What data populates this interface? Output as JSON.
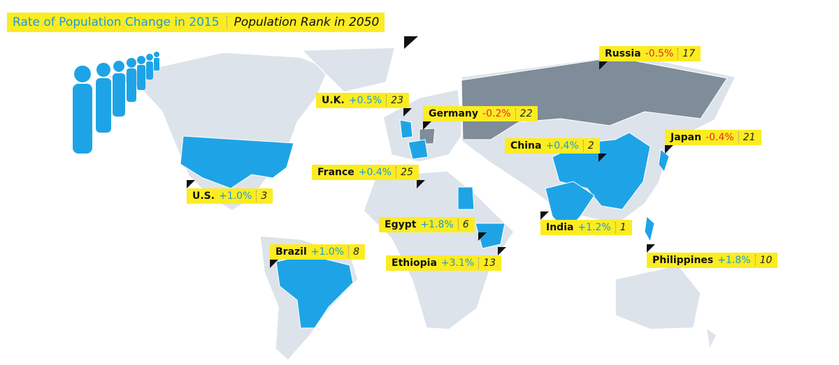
{
  "header": {
    "title": "Rate of  Population Change in 2015",
    "subtitle": "Population Rank in 2050"
  },
  "countries": [
    {
      "name": "Russia",
      "rate": "-0.5%",
      "rank": "17"
    },
    {
      "name": "U.K.",
      "rate": "+0.5%",
      "rank": "23"
    },
    {
      "name": "Germany",
      "rate": "-0.2%",
      "rank": "22"
    },
    {
      "name": "Japan",
      "rate": "-0.4%",
      "rank": "21"
    },
    {
      "name": "China",
      "rate": "+0.4%",
      "rank": "2"
    },
    {
      "name": "France",
      "rate": "+0.4%",
      "rank": "25"
    },
    {
      "name": "U.S.",
      "rate": "+1.0%",
      "rank": "3"
    },
    {
      "name": "Egypt",
      "rate": "+1.8%",
      "rank": "6"
    },
    {
      "name": "India",
      "rate": "+1.2%",
      "rank": "1"
    },
    {
      "name": "Brazil",
      "rate": "+1.0%",
      "rank": "8"
    },
    {
      "name": "Ethiopia",
      "rate": "+3.1%",
      "rank": "13"
    },
    {
      "name": "Philippines",
      "rate": "+1.8%",
      "rank": "10"
    }
  ]
}
